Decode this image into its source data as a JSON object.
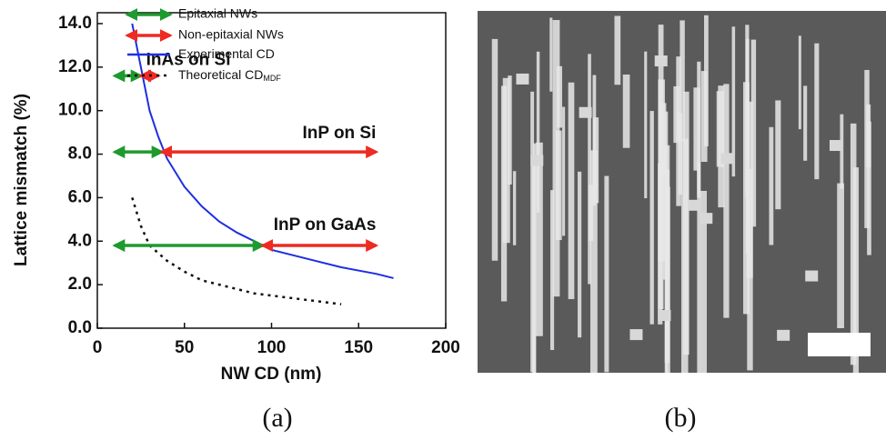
{
  "chart_data": {
    "type": "line",
    "xlabel": "NW CD (nm)",
    "ylabel": "Lattice mismatch (%)",
    "xlim": [
      0,
      200
    ],
    "xticks": [
      0,
      50,
      100,
      150,
      200
    ],
    "ylim": [
      0,
      14.5
    ],
    "yticks": [
      {
        "value": 0,
        "label": "0.0"
      },
      {
        "value": 2,
        "label": "2.0"
      },
      {
        "value": 4,
        "label": "4.0"
      },
      {
        "value": 6,
        "label": "6.0"
      },
      {
        "value": 8,
        "label": "8.0"
      },
      {
        "value": 10,
        "label": "10.0"
      },
      {
        "value": 12,
        "label": "12.0"
      },
      {
        "value": 14,
        "label": "14.0"
      }
    ],
    "arrow_series": [
      {
        "name": "Epitaxial NWs",
        "color": "#1e9a2e"
      },
      {
        "name": "Non-epitaxial NWs",
        "color": "#ee2a22"
      }
    ],
    "series": [
      {
        "name": "Experimental CD",
        "color": "#1f2ee0",
        "dash": false,
        "x": [
          20,
          25,
          30,
          35,
          40,
          50,
          60,
          70,
          80,
          90,
          100,
          120,
          140,
          160,
          170
        ],
        "y": [
          14,
          12,
          10,
          8.8,
          7.8,
          6.5,
          5.6,
          4.9,
          4.4,
          4,
          3.6,
          3.2,
          2.8,
          2.5,
          2.3
        ]
      },
      {
        "name": "Theoretical CD",
        "name_sub": "MDF",
        "color": "#111111",
        "dash": true,
        "x": [
          20,
          25,
          30,
          40,
          50,
          60,
          70,
          80,
          90,
          100,
          120,
          140
        ],
        "y": [
          6.0,
          4.7,
          3.8,
          3.1,
          2.6,
          2.2,
          2.0,
          1.8,
          1.6,
          1.5,
          1.3,
          1.1
        ]
      }
    ],
    "arrows": [
      {
        "label": "InAs on Si",
        "y": 11.6,
        "epitaxial": [
          10,
          25
        ],
        "non_epitaxial": [
          25,
          35
        ]
      },
      {
        "label": "InP on Si",
        "y": 8.1,
        "epitaxial": [
          10,
          37
        ],
        "non_epitaxial": [
          37,
          160
        ]
      },
      {
        "label": "InP on GaAs",
        "y": 3.8,
        "epitaxial": [
          10,
          95
        ],
        "non_epitaxial": [
          95,
          160
        ]
      }
    ]
  },
  "panel_labels": [
    "(a)",
    "(b)"
  ]
}
